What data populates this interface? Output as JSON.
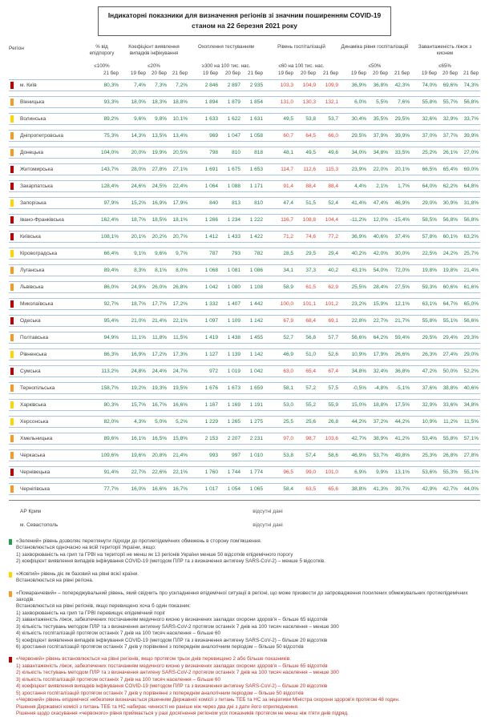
{
  "title": {
    "line1": "Індикаторні показники для визначення регіонів зі значним поширенням COVID-19",
    "line2": "станом на 22 березня 2021 року"
  },
  "colors": {
    "levels": {
      "red": "#c00000",
      "orange": "#f59b23",
      "yellow": "#ffd500",
      "green": "#21a048"
    },
    "value_normal": "#1e7a45",
    "value_exceeded": "#d94136",
    "row_line": "#aac6e4"
  },
  "table": {
    "region_header": "Регіон",
    "groups": [
      {
        "label": "% від епідпорогу",
        "threshold": "≤100%",
        "dates": [
          "21 бер"
        ]
      },
      {
        "label": "Коефіцієнт виявлення випадків інфікування",
        "threshold": "≤20%",
        "dates": [
          "19 бер",
          "20 бер",
          "21 бер"
        ]
      },
      {
        "label": "Охоплення тестуванням",
        "threshold": "≥300 на 100 тис. нас.",
        "dates": [
          "19 бер",
          "20 бер",
          "21 бер"
        ]
      },
      {
        "label": "Рівень госпіталізацій",
        "threshold": "≤60 на 100 тис. нас.",
        "dates": [
          "19 бер",
          "20 бер",
          "21 бер"
        ]
      },
      {
        "label": "Динаміка рівня госпіталізацій",
        "threshold": "≤50%",
        "dates": [
          "19 бер",
          "20 бер",
          "21 бер"
        ]
      },
      {
        "label": "Завантаженість ліжок з киснем",
        "threshold": "≤65%",
        "dates": [
          "19 бер",
          "20 бер",
          "21 бер"
        ]
      }
    ],
    "rows": [
      {
        "region": "м. Київ",
        "level": "red",
        "values": [
          "80,3%",
          "7,4%",
          "7,3%",
          "7,2%",
          "2 846",
          "2 897",
          "2 935",
          "103,3",
          "104,9",
          "109,9",
          "36,9%",
          "36,8%",
          "42,3%",
          "74,0%",
          "69,6%",
          "74,3%"
        ],
        "red": [
          7,
          8,
          9
        ]
      },
      {
        "region": "Вінницька",
        "level": "orange",
        "values": [
          "93,3%",
          "18,0%",
          "18,3%",
          "18,8%",
          "1 894",
          "1 879",
          "1 854",
          "131,0",
          "130,3",
          "132,1",
          "6,0%",
          "5,5%",
          "7,6%",
          "55,8%",
          "55,7%",
          "56,8%"
        ],
        "red": [
          7,
          8,
          9
        ]
      },
      {
        "region": "Волинська",
        "level": "yellow",
        "values": [
          "89,2%",
          "9,6%",
          "9,8%",
          "10,1%",
          "1 633",
          "1 622",
          "1 631",
          "49,5",
          "53,8",
          "53,7",
          "30,4%",
          "35,5%",
          "29,5%",
          "32,6%",
          "32,9%",
          "33,7%"
        ],
        "red": []
      },
      {
        "region": "Дніпропетровська",
        "level": "orange",
        "values": [
          "75,3%",
          "14,3%",
          "13,5%",
          "13,4%",
          "969",
          "1 047",
          "1 058",
          "60,7",
          "64,5",
          "66,0",
          "29,5%",
          "37,9%",
          "39,9%",
          "37,0%",
          "37,7%",
          "39,9%"
        ],
        "red": [
          7,
          8,
          9
        ]
      },
      {
        "region": "Донецька",
        "level": "orange",
        "values": [
          "104,0%",
          "20,0%",
          "19,9%",
          "20,5%",
          "798",
          "810",
          "818",
          "48,1",
          "49,5",
          "49,6",
          "34,0%",
          "34,8%",
          "33,5%",
          "25,2%",
          "26,1%",
          "27,0%"
        ],
        "red": []
      },
      {
        "region": "Житомирська",
        "level": "red",
        "values": [
          "143,7%",
          "28,0%",
          "27,8%",
          "27,1%",
          "1 691",
          "1 675",
          "1 653",
          "114,7",
          "112,6",
          "115,3",
          "23,9%",
          "22,0%",
          "20,1%",
          "66,5%",
          "65,4%",
          "69,0%"
        ],
        "red": [
          7,
          8,
          9
        ]
      },
      {
        "region": "Закарпатська",
        "level": "red",
        "values": [
          "128,4%",
          "24,6%",
          "24,5%",
          "22,4%",
          "1 064",
          "1 088",
          "1 171",
          "91,4",
          "88,4",
          "88,4",
          "4,4%",
          "2,1%",
          "1,7%",
          "64,0%",
          "62,2%",
          "64,8%"
        ],
        "red": [
          7,
          8,
          9
        ]
      },
      {
        "region": "Запорізька",
        "level": "yellow",
        "values": [
          "97,9%",
          "15,2%",
          "16,9%",
          "17,9%",
          "840",
          "813",
          "810",
          "47,4",
          "51,5",
          "52,4",
          "41,4%",
          "47,4%",
          "46,9%",
          "29,0%",
          "30,9%",
          "31,8%"
        ],
        "red": []
      },
      {
        "region": "Івано-Франківська",
        "level": "red",
        "values": [
          "162,4%",
          "18,7%",
          "18,5%",
          "18,1%",
          "1 266",
          "1 234",
          "1 222",
          "116,7",
          "108,8",
          "104,4",
          "-11,2%",
          "12,0%",
          "-15,4%",
          "58,5%",
          "56,8%",
          "56,8%"
        ],
        "red": [
          7,
          8,
          9
        ]
      },
      {
        "region": "Київська",
        "level": "red",
        "values": [
          "108,1%",
          "20,1%",
          "20,2%",
          "20,7%",
          "1 412",
          "1 433",
          "1 422",
          "71,2",
          "74,6",
          "77,2",
          "36,9%",
          "40,6%",
          "37,4%",
          "57,8%",
          "60,1%",
          "63,2%"
        ],
        "red": [
          7,
          8,
          9
        ]
      },
      {
        "region": "Кіровоградська",
        "level": "yellow",
        "values": [
          "66,4%",
          "9,1%",
          "9,6%",
          "9,7%",
          "787",
          "793",
          "782",
          "28,5",
          "29,5",
          "29,4",
          "40,2%",
          "42,0%",
          "30,0%",
          "22,5%",
          "24,2%",
          "25,7%"
        ],
        "red": []
      },
      {
        "region": "Луганська",
        "level": "orange",
        "values": [
          "89,4%",
          "8,3%",
          "8,1%",
          "8,0%",
          "1 068",
          "1 081",
          "1 086",
          "34,1",
          "37,3",
          "40,2",
          "43,1%",
          "54,0%",
          "72,0%",
          "19,8%",
          "19,8%",
          "21,4%"
        ],
        "red": []
      },
      {
        "region": "Львівська",
        "level": "orange",
        "values": [
          "86,0%",
          "24,9%",
          "26,0%",
          "26,8%",
          "1 042",
          "1 080",
          "1 108",
          "58,9",
          "61,5",
          "62,9",
          "25,5%",
          "28,4%",
          "27,5%",
          "59,3%",
          "60,6%",
          "61,6%"
        ],
        "red": [
          8,
          9
        ]
      },
      {
        "region": "Миколаївська",
        "level": "red",
        "values": [
          "92,7%",
          "18,7%",
          "17,7%",
          "17,2%",
          "1 332",
          "1 407",
          "1 442",
          "100,0",
          "101,1",
          "101,2",
          "23,2%",
          "15,9%",
          "12,1%",
          "63,1%",
          "64,7%",
          "65,0%"
        ],
        "red": [
          7,
          8,
          9
        ]
      },
      {
        "region": "Одеська",
        "level": "red",
        "values": [
          "95,4%",
          "21,0%",
          "21,4%",
          "22,1%",
          "1 097",
          "1 109",
          "1 142",
          "67,9",
          "68,4",
          "69,1",
          "22,8%",
          "22,7%",
          "21,7%",
          "55,8%",
          "55,1%",
          "56,6%"
        ],
        "red": [
          7,
          8,
          9
        ]
      },
      {
        "region": "Полтавська",
        "level": "orange",
        "values": [
          "94,9%",
          "11,1%",
          "11,8%",
          "11,5%",
          "1 419",
          "1 438",
          "1 455",
          "52,7",
          "56,8",
          "57,7",
          "56,6%",
          "64,2%",
          "59,4%",
          "29,5%",
          "29,4%",
          "29,3%"
        ],
        "red": []
      },
      {
        "region": "Рівненська",
        "level": "yellow",
        "values": [
          "86,3%",
          "16,9%",
          "17,2%",
          "17,3%",
          "1 127",
          "1 139",
          "1 142",
          "46,9",
          "51,0",
          "52,6",
          "10,9%",
          "17,9%",
          "26,6%",
          "26,3%",
          "27,4%",
          "29,0%"
        ],
        "red": []
      },
      {
        "region": "Сумська",
        "level": "red",
        "values": [
          "113,2%",
          "24,8%",
          "24,4%",
          "24,7%",
          "972",
          "1 019",
          "1 042",
          "63,0",
          "65,4",
          "67,4",
          "34,8%",
          "32,4%",
          "36,8%",
          "47,2%",
          "50,0%",
          "52,2%"
        ],
        "red": [
          7,
          8,
          9
        ]
      },
      {
        "region": "Тернопільська",
        "level": "orange",
        "values": [
          "158,7%",
          "19,2%",
          "19,3%",
          "19,5%",
          "1 676",
          "1 673",
          "1 659",
          "58,1",
          "57,2",
          "57,5",
          "-0,5%",
          "-4,8%",
          "-5,1%",
          "37,6%",
          "38,8%",
          "40,6%"
        ],
        "red": []
      },
      {
        "region": "Харківська",
        "level": "yellow",
        "values": [
          "80,3%",
          "15,7%",
          "16,7%",
          "16,6%",
          "1 167",
          "1 169",
          "1 191",
          "53,0",
          "55,2",
          "55,9",
          "15,0%",
          "18,8%",
          "17,5%",
          "32,9%",
          "33,6%",
          "34,8%"
        ],
        "red": []
      },
      {
        "region": "Херсонська",
        "level": "yellow",
        "values": [
          "82,0%",
          "4,3%",
          "5,0%",
          "5,2%",
          "1 229",
          "1 265",
          "1 275",
          "25,5",
          "25,6",
          "26,8",
          "44,2%",
          "37,2%",
          "44,2%",
          "10,9%",
          "11,2%",
          "11,5%"
        ],
        "red": []
      },
      {
        "region": "Хмельницька",
        "level": "orange",
        "values": [
          "89,6%",
          "16,1%",
          "16,5%",
          "15,8%",
          "2 153",
          "2 207",
          "2 231",
          "97,0",
          "98,7",
          "103,6",
          "42,7%",
          "38,9%",
          "41,2%",
          "53,4%",
          "55,8%",
          "57,1%"
        ],
        "red": [
          7,
          8,
          9
        ]
      },
      {
        "region": "Черкаська",
        "level": "orange",
        "values": [
          "109,6%",
          "19,6%",
          "20,8%",
          "21,4%",
          "993",
          "997",
          "1 010",
          "53,8",
          "57,4",
          "58,6",
          "46,9%",
          "53,7%",
          "49,8%",
          "25,3%",
          "26,8%",
          "27,8%"
        ],
        "red": []
      },
      {
        "region": "Чернівецька",
        "level": "red",
        "values": [
          "91,4%",
          "22,7%",
          "22,6%",
          "22,1%",
          "1 760",
          "1 744",
          "1 774",
          "96,5",
          "99,0",
          "101,0",
          "6,9%",
          "9,9%",
          "13,1%",
          "53,6%",
          "55,3%",
          "55,1%"
        ],
        "red": [
          7,
          8,
          9
        ]
      },
      {
        "region": "Чернігівська",
        "level": "orange",
        "values": [
          "77,7%",
          "16,0%",
          "16,6%",
          "16,7%",
          "1 017",
          "1 054",
          "1 065",
          "58,4",
          "63,5",
          "65,6",
          "38,8%",
          "41,3%",
          "39,7%",
          "42,9%",
          "42,7%",
          "44,0%"
        ],
        "red": [
          8,
          9
        ]
      }
    ],
    "no_data_rows": [
      {
        "region": "АР Крим",
        "note": "відсутні дані"
      },
      {
        "region": "м. Севастополь",
        "note": "відсутні дані"
      }
    ]
  },
  "legend": [
    {
      "color": "green",
      "lines": [
        "«Зелений» рівень дозволяє переглянути підходи до протиепідемічних обмежень в сторону пом'якшення.",
        "Встановлюється одночасно на всій території України, якщо:",
        "1) захворюваність на грип та ГРВІ на території не менш як 13 регіонів України менше 50 відсотків епідемічного порогу",
        "2) коефіцієнт виявлення випадків інфікування COVID-19 (методом ПЛР та з визначення антигену SARS-CoV-2) – менше 5 відсотків."
      ]
    },
    {
      "color": "yellow",
      "lines": [
        "«Жовтий» рівень діє як базовий на рівні всієї країни.",
        "Встановлюється на рівні регіона."
      ]
    },
    {
      "color": "orange",
      "lines": [
        "«Помаранчевий» – попереджувальний рівень, який свідчить про ускладнення епідемічної ситуації в регіоні, що може призвести до запровадження посилених обмежувальних протиепідемічних заходів.",
        "Встановлюється на рівні регіонів, якщо перевищено хоча б один показник:",
        "1) захворюваність на грип та ГРВІ перевищує епідемічний поріг",
        "2) завантаженість ліжок, забезпечених постачанням медичного кисню у визначених закладах охорони здоров'я – більше 65 відсотків",
        "3) кількість тестувань методом ПЛР та з визначення антигену SARS-CoV-2 протягом останніх 7 днів на 100 тисяч населення – менше 300",
        "4) кількість госпіталізацій протягом останніх 7 днів на 100 тисяч населення – більше 60",
        "5) коефіцієнт виявлення випадків інфікування COVID-19 (методом ПЛР та з визначення антигену SARS-CoV-2) – більше 20 відсотків",
        "6) зростання госпіталізацій протягом останніх 7 днів у порівнянні з попереднім аналогічним періодом – більше 50 відсотків"
      ]
    },
    {
      "color": "red",
      "lines": [
        "«Червоний» рівень встановлюється на рівні регіонів, якщо протягом трьох днів перевищено 2 або більше показників:",
        "1) завантаженість ліжок, забезпечених постачанням медичного кисню у визначених закладах охорони здоров'я – більше 65 відсотків",
        "2) кількість тестувань методом ПЛР та з визначення антигену SARS-CoV-2 протягом останніх 7 днів на 100 тисяч населення – менше 300",
        "3) кількість госпіталізацій протягом останніх 7 днів на 100 тисяч населення – більше 60",
        "4) коефіцієнт виявлення випадків інфікування COVID-19 (методом ПЛР та з визначення антигену SARS-CoV-2) – більше 20 відсотків",
        "5) зростання госпіталізацій протягом останніх 7 днів у порівнянні з попереднім аналогічним періодом – більше 50 відсотків",
        "«Червоний» рівень епідемічної небезпеки визначається рішенням Державної комісії з питань ТЕБ та НС за ініціативи Міністра охорони здоров'я протягом 48 годин.",
        "Рішення Державної комісії з питань ТЕБ та НС набирає чинності не раніше ніж через два дні з дати його оприлюднення.",
        "Рішення щодо скасування «червоного» рівня приймається у разі досягнення регіоном усіх показників протягом не менш ніж п'яти днів підряд."
      ]
    }
  ]
}
